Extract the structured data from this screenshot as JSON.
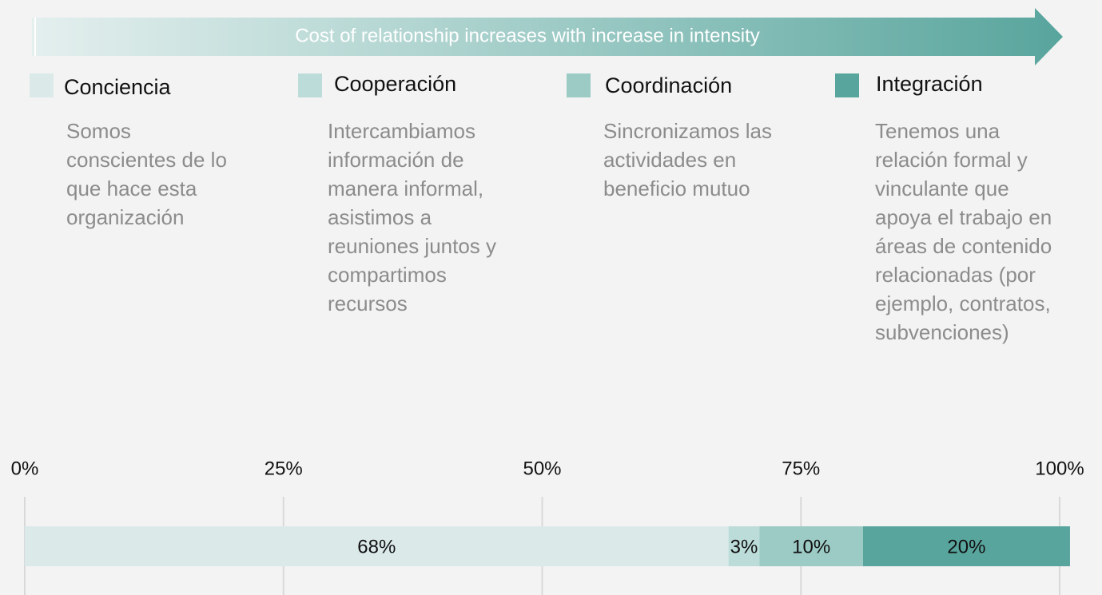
{
  "chart_data": {
    "type": "stacked_bar",
    "arrow_text": "Cost of relationship increases with increase in intensity",
    "series": [
      {
        "name": "Conciencia",
        "color": "#dbeae9",
        "description": "Somos conscientes de lo que hace esta organización",
        "values": [
          68
        ],
        "value_labels": [
          "68%"
        ]
      },
      {
        "name": "Cooperación",
        "color": "#bcdcd9",
        "description": "Intercambiamos información de manera informal, asistimos a reuniones juntos y compartimos recursos",
        "values": [
          3
        ],
        "value_labels": [
          "3%"
        ]
      },
      {
        "name": "Coordinación",
        "color": "#9ccac5",
        "description": "Sincronizamos las actividades en beneficio mutuo",
        "values": [
          10
        ],
        "value_labels": [
          "10%"
        ]
      },
      {
        "name": "Integración",
        "color": "#58a59d",
        "description": "Tenemos una relación formal y vinculante que apoya el trabajo en áreas de contenido relacionadas (por ejemplo, contratos, subvenciones)",
        "values": [
          20
        ],
        "value_labels": [
          "20%"
        ]
      }
    ],
    "xlim": [
      0,
      100
    ],
    "xticks": [
      {
        "value": 0,
        "label": "0%"
      },
      {
        "value": 25,
        "label": "25%"
      },
      {
        "value": 50,
        "label": "50%"
      },
      {
        "value": 75,
        "label": "75%"
      },
      {
        "value": 100,
        "label": "100%"
      }
    ],
    "grid": true
  }
}
